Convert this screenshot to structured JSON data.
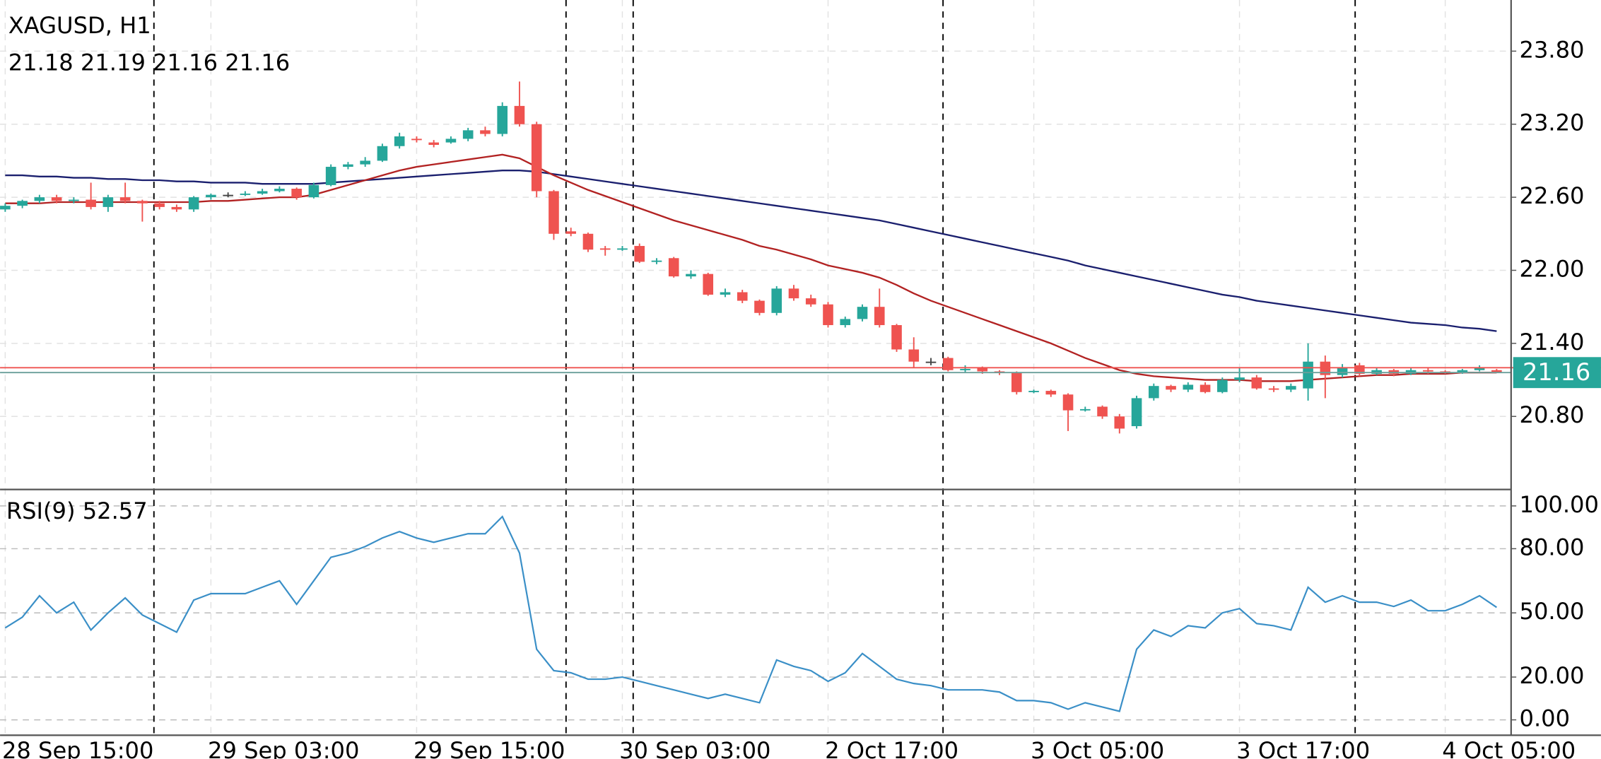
{
  "chart_data": [
    {
      "type": "candlestick",
      "title": "XAGUSD, H1",
      "subtitle": "21.18 21.19 21.16 21.16",
      "up_color": "#26a69a",
      "down_color": "#ef5350",
      "doji_color": "#444444",
      "categories": [
        "28 Sep 15:00",
        null,
        null,
        null,
        null,
        null,
        null,
        null,
        null,
        null,
        null,
        null,
        "29 Sep 03:00",
        null,
        null,
        null,
        null,
        null,
        null,
        null,
        null,
        null,
        null,
        null,
        "29 Sep 15:00",
        null,
        null,
        null,
        null,
        null,
        null,
        null,
        null,
        null,
        null,
        null,
        "30 Sep 03:00",
        null,
        null,
        null,
        null,
        null,
        null,
        null,
        null,
        null,
        null,
        null,
        "2 Oct 17:00",
        null,
        null,
        null,
        null,
        null,
        null,
        null,
        null,
        null,
        null,
        null,
        "3 Oct 05:00",
        null,
        null,
        null,
        null,
        null,
        null,
        null,
        null,
        null,
        null,
        null,
        "3 Oct 17:00",
        null,
        null,
        null,
        null,
        null,
        null,
        null,
        null,
        null,
        null,
        null,
        "4 Oct 05:00",
        null,
        null,
        null
      ],
      "open": [
        22.5,
        22.53,
        22.57,
        22.6,
        22.57,
        22.58,
        22.52,
        22.6,
        22.57,
        22.55,
        22.52,
        22.5,
        22.6,
        22.62,
        22.62,
        22.63,
        22.65,
        22.67,
        22.6,
        22.7,
        22.85,
        22.87,
        22.9,
        23.02,
        23.08,
        23.05,
        23.05,
        23.08,
        23.15,
        23.12,
        23.35,
        23.2,
        22.65,
        22.32,
        22.3,
        22.18,
        22.17,
        22.2,
        22.07,
        22.1,
        21.95,
        21.97,
        21.8,
        21.82,
        21.75,
        21.65,
        21.85,
        21.77,
        21.72,
        21.55,
        21.6,
        21.7,
        21.55,
        21.35,
        21.25,
        21.28,
        21.18,
        21.2,
        21.17,
        21.16,
        21.0,
        21.01,
        20.98,
        20.85,
        20.88,
        20.8,
        20.72,
        20.95,
        21.05,
        21.02,
        21.06,
        21.0,
        21.1,
        21.12,
        21.03,
        21.02,
        21.03,
        21.25,
        21.14,
        21.22,
        21.15,
        21.18,
        21.15,
        21.18,
        21.17,
        21.16,
        21.18,
        21.18
      ],
      "high": [
        22.55,
        22.58,
        22.62,
        22.62,
        22.6,
        22.72,
        22.62,
        22.72,
        22.58,
        22.57,
        22.54,
        22.61,
        22.63,
        22.64,
        22.65,
        22.67,
        22.69,
        22.68,
        22.72,
        22.87,
        22.89,
        22.93,
        23.04,
        23.13,
        23.1,
        23.07,
        23.1,
        23.17,
        23.18,
        23.38,
        23.55,
        23.22,
        22.66,
        22.35,
        22.31,
        22.2,
        22.2,
        22.22,
        22.1,
        22.11,
        22.0,
        21.98,
        21.85,
        21.84,
        21.76,
        21.87,
        21.88,
        21.8,
        21.74,
        21.62,
        21.72,
        21.85,
        21.56,
        21.45,
        21.28,
        21.29,
        21.22,
        21.21,
        21.18,
        21.17,
        21.02,
        21.02,
        20.99,
        20.88,
        20.89,
        20.82,
        20.97,
        21.07,
        21.06,
        21.08,
        21.08,
        21.12,
        21.2,
        21.14,
        21.05,
        21.07,
        21.4,
        21.3,
        21.23,
        21.24,
        21.2,
        21.19,
        21.2,
        21.2,
        21.18,
        21.19,
        21.22,
        21.19
      ],
      "low": [
        22.48,
        22.51,
        22.55,
        22.55,
        22.55,
        22.5,
        22.48,
        22.55,
        22.4,
        22.5,
        22.48,
        22.48,
        22.58,
        22.6,
        22.61,
        22.62,
        22.64,
        22.58,
        22.59,
        22.69,
        22.83,
        22.85,
        22.89,
        23.0,
        23.05,
        23.01,
        23.04,
        23.06,
        23.1,
        23.1,
        23.18,
        22.6,
        22.25,
        22.28,
        22.15,
        22.12,
        22.16,
        22.06,
        22.05,
        21.94,
        21.93,
        21.79,
        21.78,
        21.73,
        21.63,
        21.63,
        21.75,
        21.7,
        21.53,
        21.53,
        21.58,
        21.53,
        21.33,
        21.2,
        21.22,
        21.17,
        21.16,
        21.15,
        21.14,
        20.98,
        20.99,
        20.96,
        20.68,
        20.84,
        20.78,
        20.66,
        20.7,
        20.93,
        21.0,
        21.0,
        20.99,
        20.99,
        21.08,
        21.02,
        21.0,
        21.0,
        20.93,
        20.95,
        21.12,
        21.13,
        21.14,
        21.13,
        21.14,
        21.15,
        21.15,
        21.15,
        21.17,
        21.16
      ],
      "close": [
        22.53,
        22.57,
        22.6,
        22.57,
        22.58,
        22.52,
        22.6,
        22.57,
        22.55,
        22.52,
        22.5,
        22.6,
        22.62,
        22.62,
        22.63,
        22.65,
        22.67,
        22.6,
        22.7,
        22.85,
        22.87,
        22.9,
        23.02,
        23.1,
        23.07,
        23.03,
        23.08,
        23.15,
        23.12,
        23.35,
        23.2,
        22.65,
        22.3,
        22.3,
        22.17,
        22.17,
        22.18,
        22.07,
        22.08,
        21.95,
        21.97,
        21.8,
        21.82,
        21.75,
        21.65,
        21.85,
        21.77,
        21.72,
        21.55,
        21.6,
        21.7,
        21.55,
        21.35,
        21.25,
        21.25,
        21.18,
        21.19,
        21.17,
        21.16,
        21.0,
        21.01,
        20.98,
        20.85,
        20.86,
        20.8,
        20.7,
        20.95,
        21.05,
        21.02,
        21.06,
        21.0,
        21.1,
        21.12,
        21.03,
        21.02,
        21.05,
        21.25,
        21.14,
        21.2,
        21.15,
        21.18,
        21.15,
        21.18,
        21.17,
        21.16,
        21.18,
        21.2,
        21.16
      ],
      "overlays": [
        {
          "color": "#1a1f6e",
          "values": [
            22.78,
            22.78,
            22.77,
            22.77,
            22.76,
            22.76,
            22.75,
            22.75,
            22.74,
            22.74,
            22.73,
            22.73,
            22.72,
            22.72,
            22.72,
            22.71,
            22.71,
            22.71,
            22.71,
            22.72,
            22.73,
            22.74,
            22.75,
            22.76,
            22.77,
            22.78,
            22.79,
            22.8,
            22.81,
            22.82,
            22.82,
            22.81,
            22.79,
            22.77,
            22.75,
            22.73,
            22.71,
            22.69,
            22.67,
            22.65,
            22.63,
            22.61,
            22.59,
            22.57,
            22.55,
            22.53,
            22.51,
            22.49,
            22.47,
            22.45,
            22.43,
            22.41,
            22.38,
            22.35,
            22.32,
            22.29,
            22.26,
            22.23,
            22.2,
            22.17,
            22.14,
            22.11,
            22.08,
            22.04,
            22.01,
            21.98,
            21.95,
            21.92,
            21.89,
            21.86,
            21.83,
            21.8,
            21.78,
            21.75,
            21.73,
            21.71,
            21.69,
            21.67,
            21.65,
            21.63,
            21.61,
            21.59,
            21.57,
            21.56,
            21.55,
            21.53,
            21.52,
            21.5
          ]
        },
        {
          "color": "#b22222",
          "values": [
            22.55,
            22.55,
            22.55,
            22.56,
            22.56,
            22.56,
            22.56,
            22.56,
            22.56,
            22.56,
            22.56,
            22.56,
            22.57,
            22.57,
            22.58,
            22.59,
            22.6,
            22.6,
            22.62,
            22.66,
            22.7,
            22.74,
            22.78,
            22.82,
            22.85,
            22.87,
            22.89,
            22.91,
            22.93,
            22.95,
            22.92,
            22.85,
            22.78,
            22.72,
            22.66,
            22.61,
            22.56,
            22.51,
            22.46,
            22.41,
            22.37,
            22.33,
            22.29,
            22.25,
            22.2,
            22.17,
            22.13,
            22.09,
            22.04,
            22.01,
            21.98,
            21.94,
            21.88,
            21.81,
            21.75,
            21.7,
            21.65,
            21.6,
            21.55,
            21.5,
            21.45,
            21.4,
            21.34,
            21.28,
            21.23,
            21.18,
            21.15,
            21.13,
            21.12,
            21.11,
            21.1,
            21.1,
            21.1,
            21.09,
            21.09,
            21.09,
            21.1,
            21.11,
            21.12,
            21.13,
            21.14,
            21.14,
            21.15,
            21.15,
            21.15,
            21.16,
            21.16,
            21.16
          ]
        }
      ],
      "last_price": {
        "value": 21.16,
        "label": "21.16"
      },
      "last_price_color": "#26a69a",
      "ask": 21.2,
      "ask_color": "#ef5350",
      "ylim": [
        20.2,
        24.22
      ],
      "yticks": [
        {
          "value": 20.8,
          "label": "20.80"
        },
        {
          "value": 21.4,
          "label": "21.40"
        },
        {
          "value": 22,
          "label": "22.00"
        },
        {
          "value": 22.6,
          "label": "22.60"
        },
        {
          "value": 23.2,
          "label": "23.20"
        },
        {
          "value": 23.8,
          "label": "23.80"
        }
      ],
      "grid": true
    },
    {
      "type": "line",
      "title": "RSI(9) 52.57",
      "color": "#3a8fc7",
      "values": [
        43,
        48,
        58,
        50,
        55,
        42,
        50,
        57,
        49,
        45,
        41,
        56,
        59,
        59,
        59,
        62,
        65,
        54,
        65,
        76,
        78,
        81,
        85,
        88,
        85,
        83,
        85,
        87,
        87,
        95,
        78,
        33,
        23,
        22,
        19,
        19,
        20,
        18,
        16,
        14,
        12,
        10,
        12,
        10,
        8,
        28,
        25,
        23,
        18,
        22,
        31,
        25,
        19,
        17,
        16,
        14,
        14,
        14,
        13,
        9,
        9,
        8,
        5,
        8,
        6,
        4,
        33,
        42,
        39,
        44,
        43,
        50,
        52,
        45,
        44,
        42,
        62,
        55,
        58,
        55,
        55,
        53,
        56,
        51,
        51,
        54,
        58,
        52.57
      ],
      "ylim": [
        -7.2,
        107.2
      ],
      "yticks": [
        {
          "value": 0,
          "label": "0.00"
        },
        {
          "value": 20,
          "label": "20.00"
        },
        {
          "value": 50,
          "label": "50.00"
        },
        {
          "value": 80,
          "label": "80.00"
        },
        {
          "value": 100,
          "label": "100.00"
        }
      ],
      "grid": true
    }
  ]
}
